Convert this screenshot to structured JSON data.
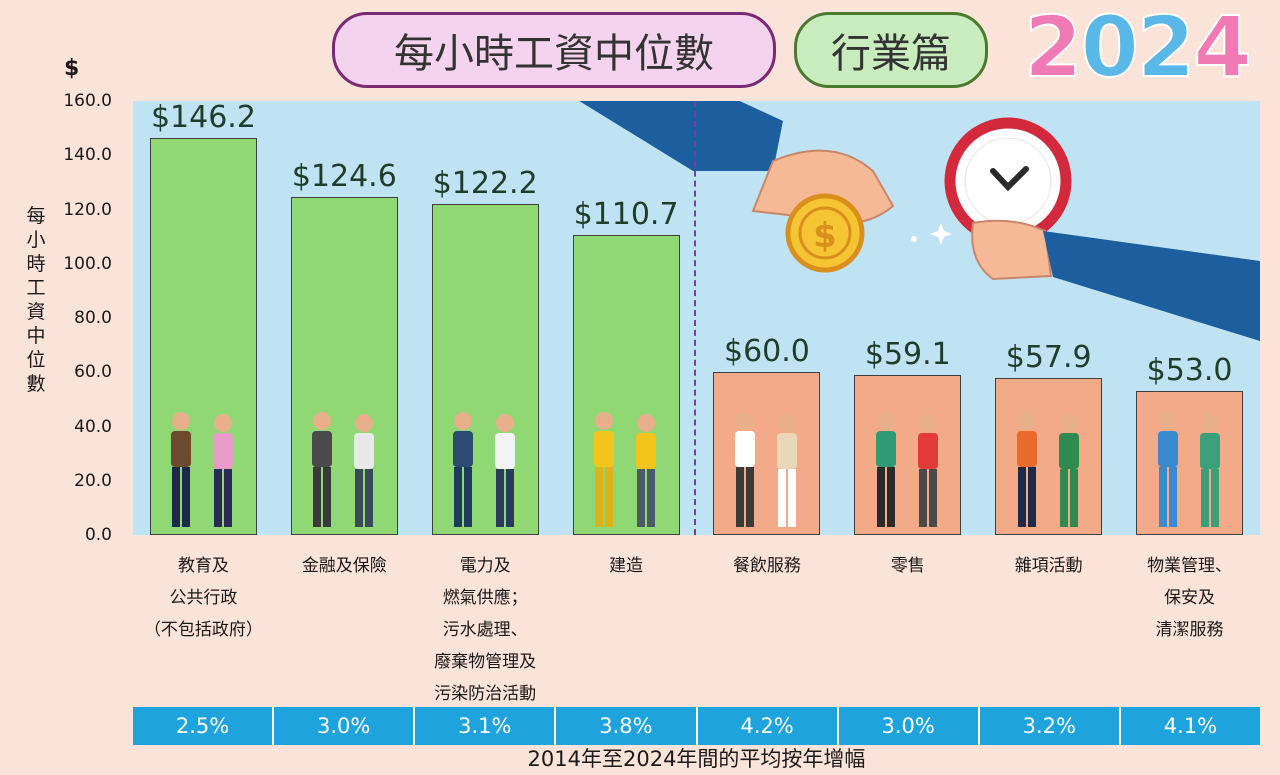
{
  "header": {
    "title": "每小時工資中位數",
    "subtitle": "行業篇",
    "year_digits": [
      "2",
      "0",
      "2",
      "4"
    ],
    "year_colors": [
      "#f07ab3",
      "#5ab8e8",
      "#5ab8e8",
      "#f07ab3"
    ]
  },
  "axis": {
    "unit": "$",
    "ytitle": "每小時工資中位數",
    "ticks": [
      "160.0",
      "140.0",
      "120.0",
      "100.0",
      "80.0",
      "60.0",
      "40.0",
      "20.0",
      "0.0"
    ]
  },
  "chart_data": {
    "type": "bar",
    "title": "每小時工資中位數",
    "ylabel": "每小時工資中位數",
    "yunit": "$",
    "ylim": [
      0,
      160
    ],
    "categories": [
      "教育及\n公共行政\n（不包括政府）",
      "金融及保險",
      "電力及\n燃氣供應；\n污水處理、\n廢棄物管理及\n污染防治活動",
      "建造",
      "餐飲服務",
      "零售",
      "雜項活動",
      "物業管理、\n保安及\n清潔服務"
    ],
    "values": [
      146.2,
      124.6,
      122.2,
      110.7,
      60.0,
      59.1,
      57.9,
      53.0
    ],
    "value_labels": [
      "$146.2",
      "$124.6",
      "$122.2",
      "$110.7",
      "$60.0",
      "$59.1",
      "$57.9",
      "$53.0"
    ],
    "bar_colors": [
      "#8fd873",
      "#8fd873",
      "#8fd873",
      "#8fd873",
      "#f2aa88",
      "#f2aa88",
      "#f2aa88",
      "#f2aa88"
    ],
    "growth": [
      "2.5%",
      "3.0%",
      "3.1%",
      "3.8%",
      "4.2%",
      "3.0%",
      "3.2%",
      "4.1%"
    ],
    "growth_caption": "2014年至2024年間的平均按年增幅",
    "grid": false
  }
}
